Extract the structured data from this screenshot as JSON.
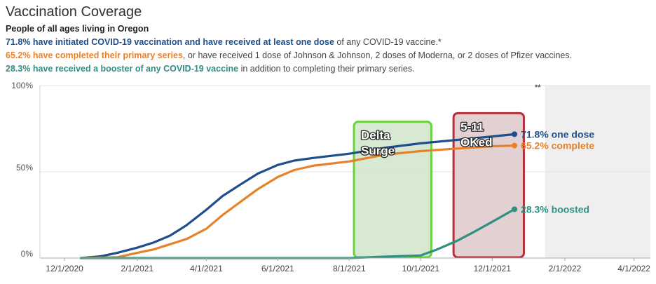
{
  "header": {
    "title": "Vaccination Coverage",
    "subtitle": "People of all ages living in Oregon",
    "line1_bold": "71.8% have initiated COVID-19 vaccination and have received at least one dose",
    "line1_rest": " of any COVID-19 vaccine.*",
    "line2_bold": "65.2% have completed their primary series",
    "line2_rest": ", or have received 1 dose of Johnson & Johnson, 2 doses of Moderna, or 2 doses of Pfizer vaccines.",
    "line3_bold": "28.3% have received a booster of any COVID-19 vaccine",
    "line3_rest": " in addition to completing their primary series."
  },
  "colors": {
    "one_dose": "#1f4e8c",
    "complete": "#e8822a",
    "boosted": "#2f8f80",
    "delta_border": "#6ad33c",
    "delta_fill": "#d5e8d0",
    "kids_border": "#b3313a",
    "kids_fill": "#e2cdd0"
  },
  "chart_data": {
    "type": "line",
    "x_ticks": [
      "12/1/2020",
      "2/1/2021",
      "4/1/2021",
      "6/1/2021",
      "8/1/2021",
      "10/1/2021",
      "12/1/2021",
      "2/1/2022",
      "4/1/2022"
    ],
    "y_ticks": [
      "100%",
      "50%",
      "0%"
    ],
    "ylim": [
      0,
      100
    ],
    "xlim": [
      "2020-11-10",
      "2022-04-15"
    ],
    "projection_start": "2022-01-15",
    "projection_marker": "**",
    "series": [
      {
        "key": "one_dose",
        "end_label": "71.8% one dose",
        "points": [
          [
            "2020-12-15",
            0
          ],
          [
            "2021-01-01",
            1
          ],
          [
            "2021-01-15",
            3
          ],
          [
            "2021-02-01",
            6
          ],
          [
            "2021-02-15",
            9
          ],
          [
            "2021-03-01",
            13
          ],
          [
            "2021-03-15",
            19
          ],
          [
            "2021-04-01",
            28
          ],
          [
            "2021-04-15",
            36
          ],
          [
            "2021-05-01",
            43
          ],
          [
            "2021-05-15",
            49
          ],
          [
            "2021-06-01",
            54
          ],
          [
            "2021-06-15",
            56.5
          ],
          [
            "2021-07-01",
            58
          ],
          [
            "2021-08-01",
            60.5
          ],
          [
            "2021-09-01",
            64
          ],
          [
            "2021-10-01",
            66.5
          ],
          [
            "2021-11-01",
            68.5
          ],
          [
            "2021-12-01",
            70.5
          ],
          [
            "2021-12-20",
            71.8
          ]
        ]
      },
      {
        "key": "complete",
        "end_label": "65.2% complete",
        "points": [
          [
            "2020-12-15",
            0
          ],
          [
            "2021-01-15",
            0.5
          ],
          [
            "2021-02-01",
            3
          ],
          [
            "2021-02-15",
            5
          ],
          [
            "2021-03-01",
            8
          ],
          [
            "2021-03-15",
            11
          ],
          [
            "2021-04-01",
            17
          ],
          [
            "2021-04-15",
            25
          ],
          [
            "2021-05-01",
            33
          ],
          [
            "2021-05-15",
            40
          ],
          [
            "2021-06-01",
            47
          ],
          [
            "2021-06-15",
            51
          ],
          [
            "2021-07-01",
            53.5
          ],
          [
            "2021-08-01",
            56
          ],
          [
            "2021-09-01",
            60
          ],
          [
            "2021-10-01",
            62
          ],
          [
            "2021-11-01",
            63.5
          ],
          [
            "2021-12-01",
            64.8
          ],
          [
            "2021-12-20",
            65.2
          ]
        ]
      },
      {
        "key": "boosted",
        "end_label": "28.3% boosted",
        "points": [
          [
            "2020-12-15",
            0
          ],
          [
            "2021-08-01",
            0
          ],
          [
            "2021-09-01",
            0.8
          ],
          [
            "2021-10-01",
            1.5
          ],
          [
            "2021-10-15",
            5
          ],
          [
            "2021-11-01",
            10
          ],
          [
            "2021-11-15",
            15
          ],
          [
            "2021-12-01",
            21
          ],
          [
            "2021-12-20",
            28.3
          ]
        ]
      }
    ],
    "annotations": [
      {
        "key": "delta",
        "text_line1": "Delta",
        "text_line2": "Surge",
        "start": "2021-08-05",
        "end": "2021-10-10",
        "top": 79
      },
      {
        "key": "kids",
        "text_line1": "5-11",
        "text_line2": "OKed",
        "start": "2021-10-29",
        "end": "2021-12-28",
        "top": 84
      }
    ]
  }
}
